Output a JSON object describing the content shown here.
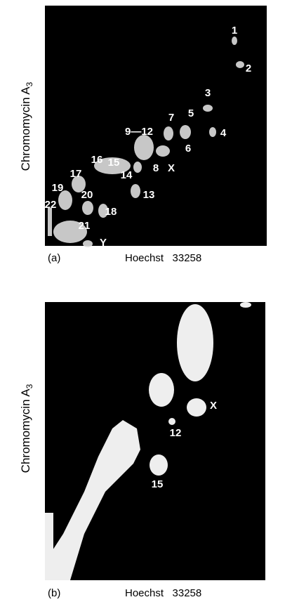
{
  "panels": [
    {
      "label": "(a)",
      "x_label": "Hoechst   33258",
      "y_label": {
        "text": "Chromomycin A",
        "subscript": "3"
      },
      "spots": [
        "1",
        "2",
        "3",
        "4",
        "5",
        "6",
        "7",
        "9—12",
        "8",
        "X",
        "16",
        "15",
        "14",
        "17",
        "13",
        "19",
        "20",
        "22",
        "18",
        "21",
        "Y"
      ]
    },
    {
      "label": "(b)",
      "x_label": "Hoechst   33258",
      "y_label": {
        "text": "Chromomycin A",
        "subscript": "3"
      },
      "spots": [
        "X",
        "12",
        "15"
      ]
    }
  ]
}
